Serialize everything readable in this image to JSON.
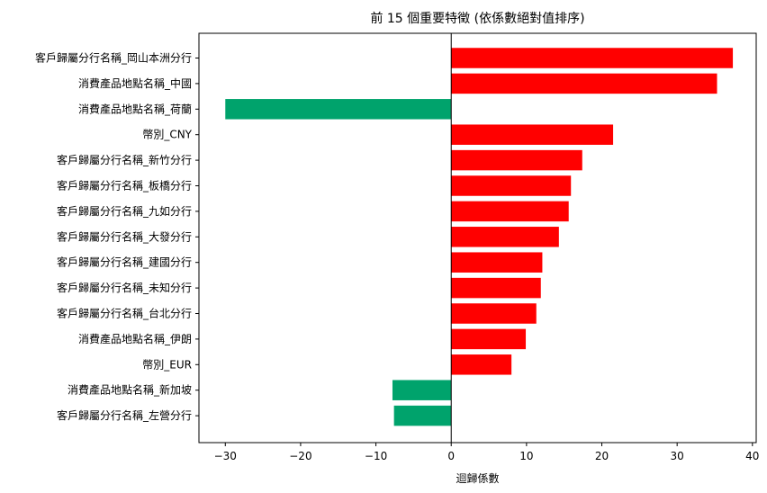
{
  "chart_data": {
    "type": "bar",
    "orientation": "horizontal",
    "title": "前 15 個重要特徵 (依係數絕對值排序)",
    "xlabel": "迴歸係數",
    "ylabel": "",
    "xlim": [
      -33.5,
      40.5
    ],
    "xticks": [
      -30,
      -20,
      -10,
      0,
      10,
      20,
      30,
      40
    ],
    "xtick_labels": [
      "−30",
      "−20",
      "−10",
      "0",
      "10",
      "20",
      "30",
      "40"
    ],
    "zero_line": true,
    "grid": false,
    "legend": "none",
    "colors": {
      "positive": "#ff0000",
      "negative": "#00a36c",
      "axis": "#000000",
      "background": "#ffffff"
    },
    "categories": [
      "客戶歸屬分行名稱_岡山本洲分行",
      "消費產品地點名稱_中國",
      "消費產品地點名稱_荷蘭",
      "幣別_CNY",
      "客戶歸屬分行名稱_新竹分行",
      "客戶歸屬分行名稱_板橋分行",
      "客戶歸屬分行名稱_九如分行",
      "客戶歸屬分行名稱_大發分行",
      "客戶歸屬分行名稱_建國分行",
      "客戶歸屬分行名稱_未知分行",
      "客戶歸屬分行名稱_台北分行",
      "消費產品地點名稱_伊朗",
      "幣別_EUR",
      "消費產品地點名稱_新加坡",
      "客戶歸屬分行名稱_左營分行"
    ],
    "values": [
      37.4,
      35.3,
      -30.0,
      21.5,
      17.4,
      15.9,
      15.6,
      14.3,
      12.1,
      11.9,
      11.3,
      9.9,
      8.0,
      -7.8,
      -7.6
    ]
  }
}
